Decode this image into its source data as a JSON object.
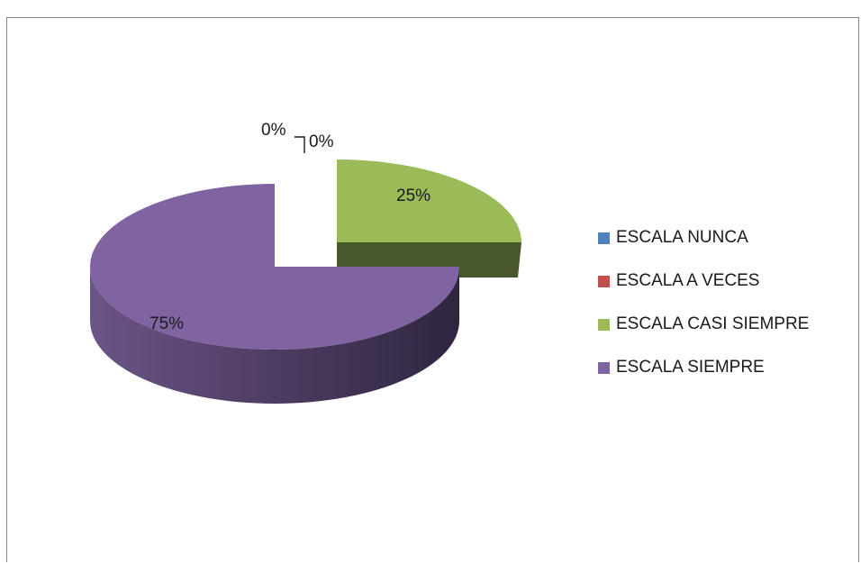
{
  "chart_data": {
    "type": "pie",
    "categories": [
      "ESCALA NUNCA",
      "ESCALA A VECES",
      "ESCALA CASI SIEMPRE",
      "ESCALA SIEMPRE"
    ],
    "values": [
      0,
      0,
      25,
      75
    ],
    "data_labels": [
      "0%",
      "0%",
      "25%",
      "75%"
    ],
    "colors": [
      "#4f81bd",
      "#c0504d",
      "#9bbb59",
      "#8064a2"
    ],
    "legend_position": "right",
    "title": "",
    "three_d": true,
    "exploded": true
  }
}
